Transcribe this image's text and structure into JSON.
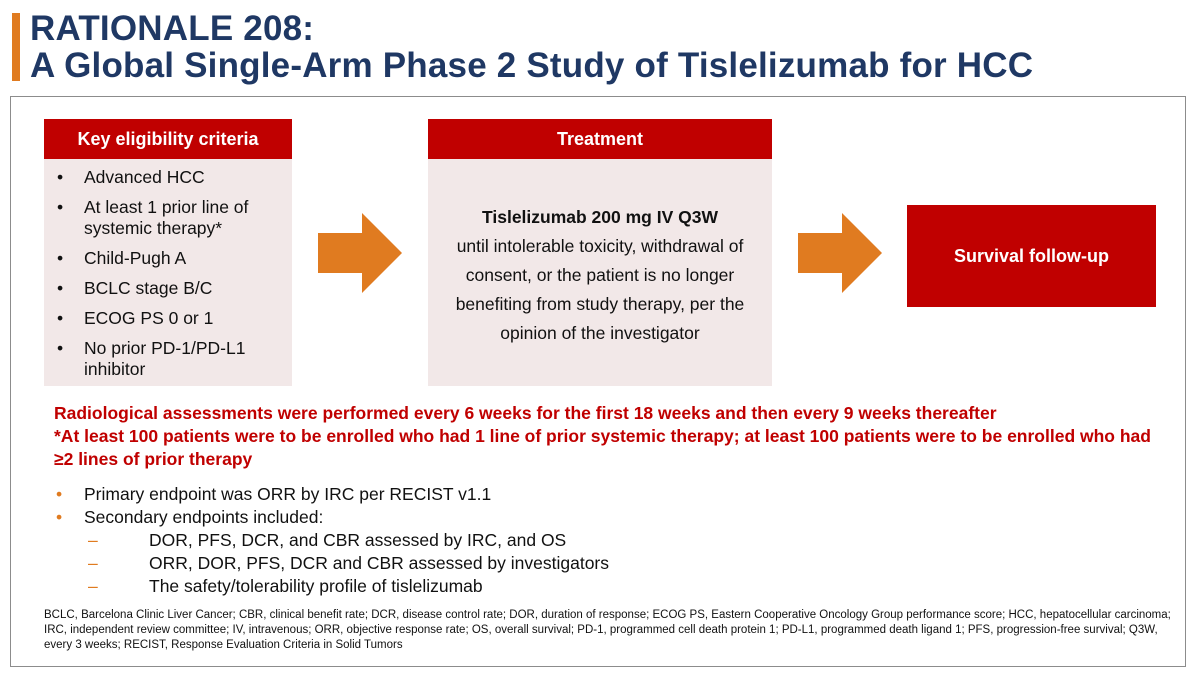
{
  "title": {
    "line1": "RATIONALE 208:",
    "line2": "A Global Single-Arm Phase 2 Study of Tislelizumab for HCC"
  },
  "eligibility": {
    "header": "Key eligibility criteria",
    "items": [
      "Advanced HCC",
      "At least 1 prior line of systemic therapy*",
      "Child-Pugh A",
      "BCLC stage B/C",
      "ECOG PS 0 or 1",
      "No prior PD-1/PD-L1 inhibitor"
    ]
  },
  "treatment": {
    "header": "Treatment",
    "dose": "Tislelizumab 200 mg IV Q3W",
    "details": "until intolerable toxicity, withdrawal of consent, or the patient is no longer benefiting from study therapy, per the opinion of the investigator"
  },
  "survival": {
    "label": "Survival follow-up"
  },
  "notes": {
    "line1": "Radiological assessments were performed every 6 weeks for the first 18 weeks and then every 9 weeks thereafter",
    "line2": "*At least 100 patients were to be enrolled who had 1 line of prior systemic therapy; at least 100 patients were to be enrolled who had ≥2 lines of prior therapy"
  },
  "endpoints": {
    "primary": "Primary endpoint was ORR by IRC per RECIST v1.1",
    "secondary": "Secondary endpoints included:",
    "sub": [
      "DOR, PFS, DCR, and CBR assessed by IRC, and OS",
      "ORR, DOR, PFS, DCR and CBR assessed by investigators",
      "The safety/tolerability profile of tislelizumab"
    ]
  },
  "footnote": "BCLC, Barcelona Clinic Liver Cancer; CBR, clinical benefit rate; DCR, disease control rate; DOR, duration of response; ECOG PS, Eastern Cooperative Oncology Group performance score; HCC, hepatocellular carcinoma; IRC, independent review committee; IV, intravenous; ORR, objective response rate; OS, overall survival; PD-1, programmed cell death protein 1; PD-L1, programmed death ligand 1; PFS, progression-free survival; Q3W, every 3 weeks; RECIST, Response Evaluation Criteria in Solid Tumors",
  "colors": {
    "title": "#1f3864",
    "accent": "#e07b20",
    "header_red": "#c00000",
    "box_fill": "#f2e8e8",
    "arrow": "#e07b20"
  }
}
